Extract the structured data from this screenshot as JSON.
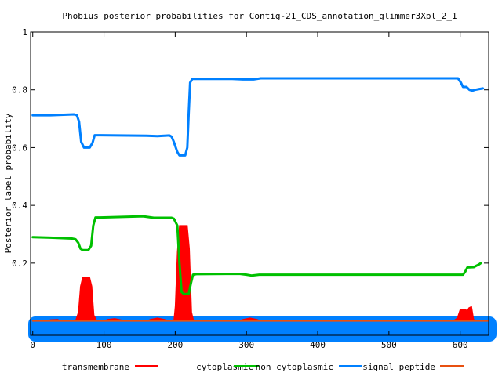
{
  "chart_data": {
    "type": "area",
    "title": "Phobius posterior probabilities for Contig-21_CDS_annotation_glimmer3Xpl_2_1",
    "xlabel": "",
    "ylabel": "Posterior label probability",
    "xlim": [
      -3,
      640
    ],
    "ylim": [
      -0.05,
      1
    ],
    "x_ticks": [
      0,
      100,
      200,
      300,
      400,
      500,
      600
    ],
    "y_ticks": [
      {
        "value": 1,
        "label": "1"
      },
      {
        "value": 0.8,
        "label": "0.8"
      },
      {
        "value": 0.6,
        "label": "0.6"
      },
      {
        "value": 0.4,
        "label": "0.4"
      },
      {
        "value": 0.2,
        "label": "0.2"
      }
    ],
    "grid": false,
    "legend_position": "bottom",
    "series": [
      {
        "name": "transmembrane",
        "color": "#ff0000",
        "style": "filled-area",
        "points": [
          [
            0,
            0
          ],
          [
            20,
            0
          ],
          [
            25,
            0.004
          ],
          [
            35,
            0.005
          ],
          [
            40,
            0
          ],
          [
            60,
            0
          ],
          [
            64,
            0.03
          ],
          [
            67,
            0.12
          ],
          [
            70,
            0.15
          ],
          [
            80,
            0.15
          ],
          [
            83,
            0.12
          ],
          [
            86,
            0.02
          ],
          [
            90,
            0
          ],
          [
            100,
            0
          ],
          [
            105,
            0.005
          ],
          [
            115,
            0.008
          ],
          [
            125,
            0.003
          ],
          [
            130,
            0
          ],
          [
            160,
            0
          ],
          [
            165,
            0.005
          ],
          [
            175,
            0.01
          ],
          [
            185,
            0.005
          ],
          [
            190,
            0
          ],
          [
            198,
            0
          ],
          [
            200,
            0.05
          ],
          [
            203,
            0.24
          ],
          [
            206,
            0.33
          ],
          [
            217,
            0.33
          ],
          [
            220,
            0.25
          ],
          [
            223,
            0.03
          ],
          [
            226,
            0
          ],
          [
            290,
            0
          ],
          [
            295,
            0.005
          ],
          [
            305,
            0.01
          ],
          [
            315,
            0.005
          ],
          [
            320,
            0
          ],
          [
            590,
            0
          ],
          [
            596,
            0.01
          ],
          [
            600,
            0.04
          ],
          [
            607,
            0.04
          ],
          [
            610,
            0.035
          ],
          [
            612,
            0.045
          ],
          [
            616,
            0.05
          ],
          [
            619,
            0.005
          ],
          [
            622,
            0
          ],
          [
            640,
            0
          ]
        ]
      },
      {
        "name": "cytoplasmic",
        "color": "#00c000",
        "style": "line",
        "points": [
          [
            0,
            0.29
          ],
          [
            25,
            0.288
          ],
          [
            55,
            0.285
          ],
          [
            60,
            0.283
          ],
          [
            64,
            0.27
          ],
          [
            67,
            0.25
          ],
          [
            70,
            0.245
          ],
          [
            78,
            0.245
          ],
          [
            82,
            0.26
          ],
          [
            85,
            0.33
          ],
          [
            88,
            0.358
          ],
          [
            95,
            0.358
          ],
          [
            125,
            0.36
          ],
          [
            155,
            0.362
          ],
          [
            170,
            0.357
          ],
          [
            195,
            0.357
          ],
          [
            198,
            0.354
          ],
          [
            203,
            0.33
          ],
          [
            206,
            0.2
          ],
          [
            209,
            0.1
          ],
          [
            212,
            0.093
          ],
          [
            219,
            0.093
          ],
          [
            222,
            0.13
          ],
          [
            225,
            0.16
          ],
          [
            230,
            0.162
          ],
          [
            290,
            0.163
          ],
          [
            300,
            0.16
          ],
          [
            307,
            0.157
          ],
          [
            318,
            0.16
          ],
          [
            360,
            0.16
          ],
          [
            598,
            0.16
          ],
          [
            604,
            0.16
          ],
          [
            607,
            0.17
          ],
          [
            610,
            0.185
          ],
          [
            619,
            0.186
          ],
          [
            622,
            0.19
          ],
          [
            626,
            0.195
          ],
          [
            629,
            0.2
          ]
        ]
      },
      {
        "name": "non cytoplasmic",
        "color": "#0080ff",
        "style": "line",
        "points": [
          [
            0,
            0.712
          ],
          [
            25,
            0.712
          ],
          [
            58,
            0.715
          ],
          [
            62,
            0.712
          ],
          [
            65,
            0.69
          ],
          [
            68,
            0.62
          ],
          [
            72,
            0.6
          ],
          [
            80,
            0.6
          ],
          [
            84,
            0.617
          ],
          [
            87,
            0.643
          ],
          [
            95,
            0.643
          ],
          [
            120,
            0.642
          ],
          [
            160,
            0.641
          ],
          [
            175,
            0.64
          ],
          [
            192,
            0.642
          ],
          [
            195,
            0.638
          ],
          [
            198,
            0.62
          ],
          [
            203,
            0.585
          ],
          [
            206,
            0.573
          ],
          [
            214,
            0.573
          ],
          [
            217,
            0.6
          ],
          [
            219,
            0.72
          ],
          [
            221,
            0.825
          ],
          [
            224,
            0.838
          ],
          [
            240,
            0.838
          ],
          [
            280,
            0.838
          ],
          [
            295,
            0.836
          ],
          [
            310,
            0.836
          ],
          [
            320,
            0.84
          ],
          [
            380,
            0.84
          ],
          [
            450,
            0.84
          ],
          [
            597,
            0.84
          ],
          [
            601,
            0.825
          ],
          [
            604,
            0.81
          ],
          [
            609,
            0.81
          ],
          [
            613,
            0.8
          ],
          [
            617,
            0.797
          ],
          [
            621,
            0.8
          ],
          [
            627,
            0.803
          ],
          [
            632,
            0.805
          ]
        ]
      },
      {
        "name": "signal peptide",
        "color": "#e85010",
        "style": "line",
        "points": [
          [
            0,
            0
          ],
          [
            640,
            0
          ]
        ]
      }
    ]
  }
}
